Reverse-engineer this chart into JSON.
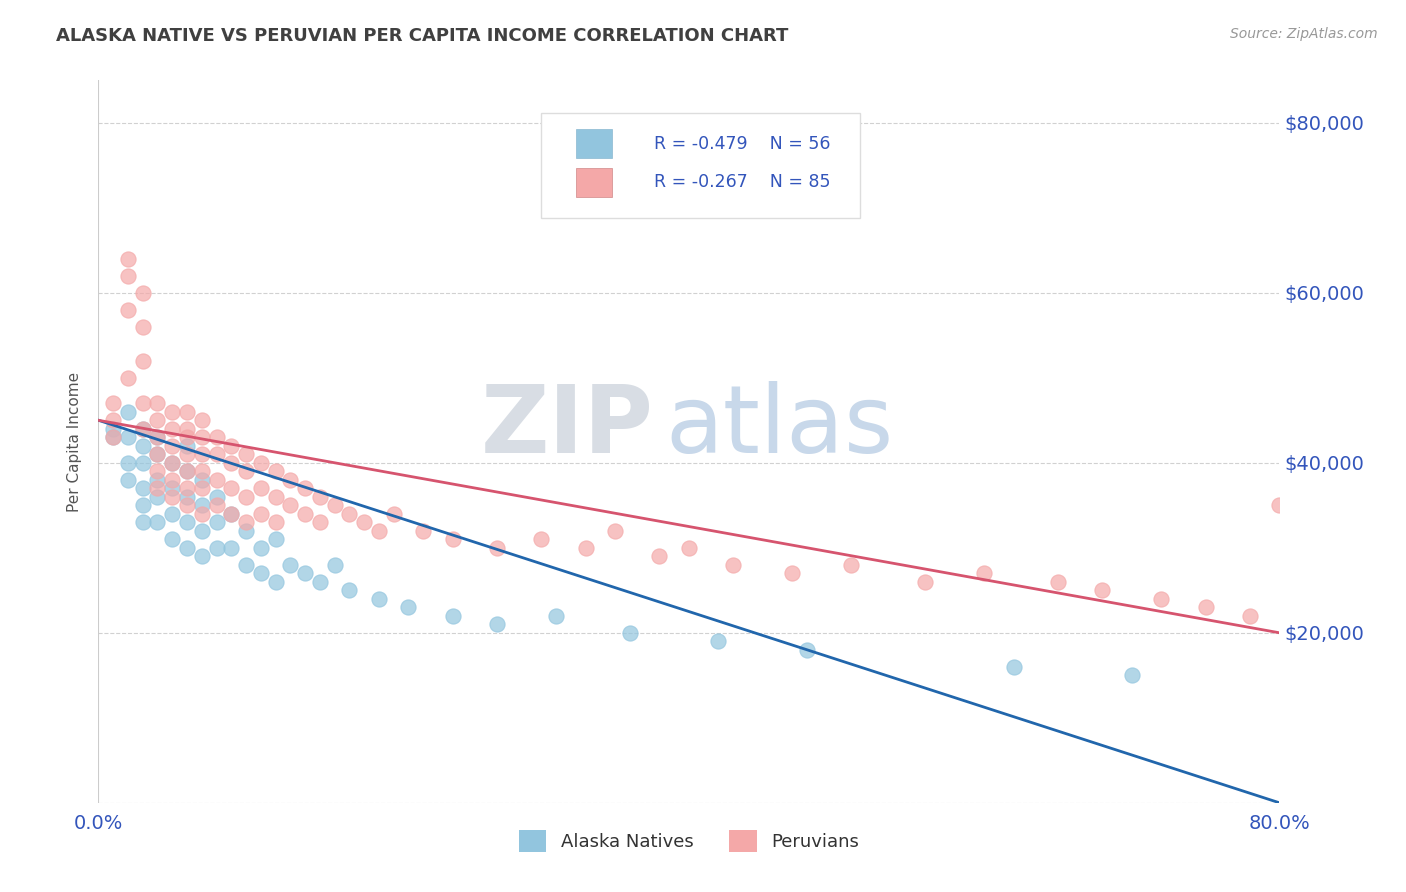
{
  "title": "ALASKA NATIVE VS PERUVIAN PER CAPITA INCOME CORRELATION CHART",
  "source": "Source: ZipAtlas.com",
  "ylabel": "Per Capita Income",
  "yticks": [
    0,
    20000,
    40000,
    60000,
    80000
  ],
  "ylim": [
    0,
    85000
  ],
  "xlim": [
    0.0,
    0.8
  ],
  "alaska_R": -0.479,
  "alaska_N": 56,
  "peruvian_R": -0.267,
  "peruvian_N": 85,
  "alaska_color": "#92c5de",
  "peruvian_color": "#f4a8a8",
  "alaska_line_color": "#2166ac",
  "peruvian_line_color": "#d6546e",
  "legend_label_alaska": "Alaska Natives",
  "legend_label_peruvian": "Peruvians",
  "watermark_zip": "ZIP",
  "watermark_atlas": "atlas",
  "background_color": "#ffffff",
  "grid_color": "#cccccc",
  "title_color": "#404040",
  "axis_label_color": "#3355bb",
  "alaska_line_x0": 0.0,
  "alaska_line_y0": 45000,
  "alaska_line_x1": 0.8,
  "alaska_line_y1": 0,
  "peruvian_line_x0": 0.0,
  "peruvian_line_y0": 45000,
  "peruvian_line_x1": 0.8,
  "peruvian_line_y1": 20000,
  "alaska_scatter_x": [
    0.01,
    0.01,
    0.02,
    0.02,
    0.02,
    0.02,
    0.03,
    0.03,
    0.03,
    0.03,
    0.03,
    0.03,
    0.04,
    0.04,
    0.04,
    0.04,
    0.04,
    0.05,
    0.05,
    0.05,
    0.05,
    0.06,
    0.06,
    0.06,
    0.06,
    0.06,
    0.07,
    0.07,
    0.07,
    0.07,
    0.08,
    0.08,
    0.08,
    0.09,
    0.09,
    0.1,
    0.1,
    0.11,
    0.11,
    0.12,
    0.12,
    0.13,
    0.14,
    0.15,
    0.16,
    0.17,
    0.19,
    0.21,
    0.24,
    0.27,
    0.31,
    0.36,
    0.42,
    0.48,
    0.62,
    0.7
  ],
  "alaska_scatter_y": [
    44000,
    43000,
    46000,
    43000,
    40000,
    38000,
    44000,
    42000,
    40000,
    37000,
    35000,
    33000,
    43000,
    41000,
    38000,
    36000,
    33000,
    40000,
    37000,
    34000,
    31000,
    42000,
    39000,
    36000,
    33000,
    30000,
    38000,
    35000,
    32000,
    29000,
    36000,
    33000,
    30000,
    34000,
    30000,
    32000,
    28000,
    30000,
    27000,
    31000,
    26000,
    28000,
    27000,
    26000,
    28000,
    25000,
    24000,
    23000,
    22000,
    21000,
    22000,
    20000,
    19000,
    18000,
    16000,
    15000
  ],
  "peruvian_scatter_x": [
    0.01,
    0.01,
    0.01,
    0.02,
    0.02,
    0.02,
    0.02,
    0.03,
    0.03,
    0.03,
    0.03,
    0.03,
    0.04,
    0.04,
    0.04,
    0.04,
    0.04,
    0.04,
    0.05,
    0.05,
    0.05,
    0.05,
    0.05,
    0.05,
    0.06,
    0.06,
    0.06,
    0.06,
    0.06,
    0.06,
    0.06,
    0.07,
    0.07,
    0.07,
    0.07,
    0.07,
    0.07,
    0.08,
    0.08,
    0.08,
    0.08,
    0.09,
    0.09,
    0.09,
    0.09,
    0.1,
    0.1,
    0.1,
    0.1,
    0.11,
    0.11,
    0.11,
    0.12,
    0.12,
    0.12,
    0.13,
    0.13,
    0.14,
    0.14,
    0.15,
    0.15,
    0.16,
    0.17,
    0.18,
    0.19,
    0.2,
    0.22,
    0.24,
    0.27,
    0.3,
    0.33,
    0.35,
    0.38,
    0.4,
    0.43,
    0.47,
    0.51,
    0.56,
    0.6,
    0.65,
    0.68,
    0.72,
    0.75,
    0.78,
    0.8
  ],
  "peruvian_scatter_y": [
    47000,
    45000,
    43000,
    64000,
    62000,
    58000,
    50000,
    60000,
    56000,
    52000,
    47000,
    44000,
    47000,
    45000,
    43000,
    41000,
    39000,
    37000,
    46000,
    44000,
    42000,
    40000,
    38000,
    36000,
    46000,
    44000,
    43000,
    41000,
    39000,
    37000,
    35000,
    45000,
    43000,
    41000,
    39000,
    37000,
    34000,
    43000,
    41000,
    38000,
    35000,
    42000,
    40000,
    37000,
    34000,
    41000,
    39000,
    36000,
    33000,
    40000,
    37000,
    34000,
    39000,
    36000,
    33000,
    38000,
    35000,
    37000,
    34000,
    36000,
    33000,
    35000,
    34000,
    33000,
    32000,
    34000,
    32000,
    31000,
    30000,
    31000,
    30000,
    32000,
    29000,
    30000,
    28000,
    27000,
    28000,
    26000,
    27000,
    26000,
    25000,
    24000,
    23000,
    22000,
    35000
  ]
}
